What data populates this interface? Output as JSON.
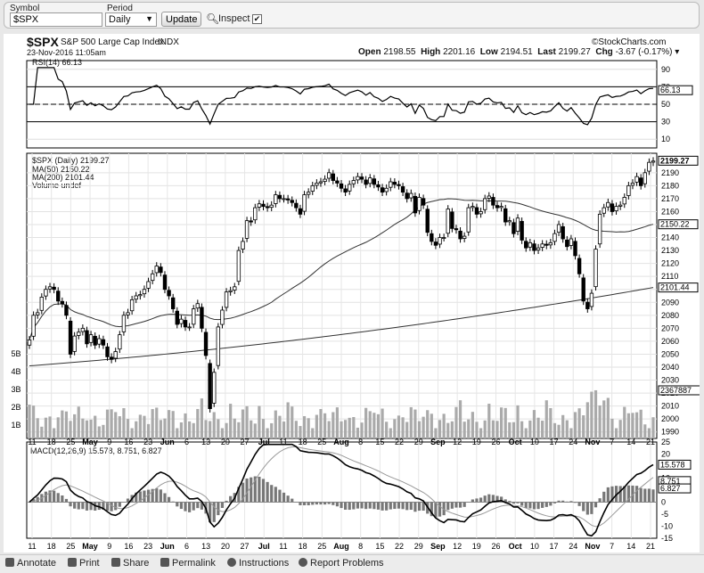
{
  "toolbar": {
    "symbol_label": "Symbol",
    "symbol_value": "$SPX",
    "period_label": "Period",
    "period_value": "Daily",
    "update_label": "Update",
    "inspect_label": "Inspect",
    "inspect_checked": "✔"
  },
  "header": {
    "symbol": "$SPX",
    "name": "S&P 500 Large Cap Index",
    "exchange": "INDX",
    "brand": "©StockCharts.com",
    "datetime": "23-Nov-2016 11:05am",
    "open_label": "Open",
    "open": "2198.55",
    "high_label": "High",
    "high": "2201.16",
    "low_label": "Low",
    "low": "2194.51",
    "last_label": "Last",
    "last": "2199.27",
    "chg_label": "Chg",
    "chg": "-3.67 (-0.17%)"
  },
  "rsi": {
    "label": "RSI(14) 66.13",
    "value_tag": "66.13"
  },
  "price_legend": {
    "main": "$SPX (Daily) 2199.27",
    "ma50": "MA(50) 2150.22",
    "ma200": "MA(200) 2101.44",
    "volume": "Volume undef"
  },
  "tags": {
    "price": "2199.27",
    "ma50": "2150.22",
    "ma200": "2101.44",
    "volume": "2367887",
    "macd": "15.578",
    "signal": "8.751",
    "hist": "6.827"
  },
  "macd": {
    "label": "MACD(12,26,9) 15.578, 8.751, 6.827"
  },
  "bottom": {
    "annotate": "Annotate",
    "print": "Print",
    "share": "Share",
    "permalink": "Permalink",
    "instructions": "Instructions",
    "report": "Report Problems"
  },
  "chart_data": [
    {
      "type": "line",
      "title": "RSI(14)",
      "y": [
        10,
        30,
        50,
        70,
        90
      ],
      "ylim": [
        0,
        100
      ],
      "reference_lines": [
        30,
        70
      ],
      "last": 66.13
    },
    {
      "type": "candlestick",
      "title": "$SPX (Daily)",
      "ylim": [
        1985,
        2205
      ],
      "y_ticks": [
        1990,
        2000,
        2010,
        2020,
        2030,
        2040,
        2050,
        2060,
        2070,
        2080,
        2090,
        2100,
        2110,
        2120,
        2130,
        2140,
        2150,
        2160,
        2170,
        2180,
        2190
      ],
      "volume_ticks": [
        "1B",
        "2B",
        "3B",
        "4B",
        "5B"
      ],
      "x_ticks": [
        "11",
        "18",
        "25",
        "May",
        "9",
        "16",
        "23",
        "Jun",
        "6",
        "13",
        "20",
        "27",
        "Jul",
        "11",
        "18",
        "25",
        "Aug",
        "8",
        "15",
        "22",
        "29",
        "Sep",
        "12",
        "19",
        "26",
        "Oct",
        "10",
        "17",
        "24",
        "Nov",
        "7",
        "14",
        "21"
      ],
      "close": [
        2061,
        2080,
        2082,
        2094,
        2100,
        2102,
        2100,
        2091,
        2089,
        2080,
        2050,
        2064,
        2067,
        2070,
        2058,
        2065,
        2057,
        2062,
        2057,
        2048,
        2046,
        2052,
        2065,
        2080,
        2082,
        2092,
        2095,
        2096,
        2100,
        2106,
        2112,
        2118,
        2113,
        2100,
        2095,
        2085,
        2073,
        2077,
        2071,
        2071,
        2085,
        2089,
        2070,
        2049,
        2008,
        2036,
        2071,
        2084,
        2098,
        2099,
        2102,
        2130,
        2137,
        2153,
        2152,
        2163,
        2166,
        2164,
        2163,
        2165,
        2173,
        2170,
        2170,
        2169,
        2167,
        2163,
        2158,
        2173,
        2175,
        2180,
        2182,
        2183,
        2185,
        2190,
        2184,
        2182,
        2178,
        2175,
        2181,
        2184,
        2187,
        2185,
        2181,
        2186,
        2181,
        2179,
        2175,
        2178,
        2183,
        2181,
        2180,
        2175,
        2170,
        2174,
        2159,
        2171,
        2165,
        2144,
        2137,
        2134,
        2140,
        2140,
        2162,
        2147,
        2146,
        2139,
        2141,
        2163,
        2164,
        2158,
        2160,
        2170,
        2172,
        2165,
        2163,
        2164,
        2152,
        2153,
        2143,
        2155,
        2138,
        2132,
        2136,
        2130,
        2132,
        2135,
        2134,
        2136,
        2143,
        2150,
        2139,
        2133,
        2139,
        2126,
        2112,
        2091,
        2085,
        2097,
        2131,
        2158,
        2163,
        2167,
        2160,
        2164,
        2165,
        2171,
        2180,
        2182,
        2187,
        2180,
        2190,
        2198,
        2199
      ],
      "ma50_end": 2150.22,
      "ma200_end": 2101.44
    },
    {
      "type": "macd",
      "title": "MACD(12,26,9)",
      "ylim": [
        -15,
        25
      ],
      "y_ticks": [
        -15,
        -10,
        -5,
        0,
        5,
        10,
        15,
        20,
        25
      ],
      "macd": 15.578,
      "signal": 8.751,
      "histogram": 6.827
    }
  ]
}
